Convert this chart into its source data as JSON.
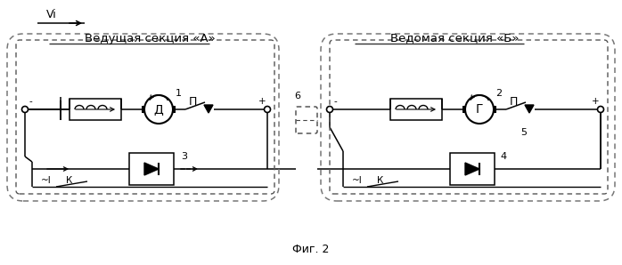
{
  "title": "Фиг. 2",
  "vi_label": "Vi",
  "section_a_label": "Ведущая секция «А»",
  "section_b_label": "Ведомая секция «Б»",
  "motor_a_label": "Д",
  "motor_b_label": "Г",
  "num1": "1",
  "num2": "2",
  "num3": "3",
  "num4": "4",
  "num5": "5",
  "num6": "6",
  "P_label": "П",
  "plus_label": "+",
  "minus_label": "-",
  "I_label": "~I",
  "K_label": "К",
  "bg_color": "#ffffff",
  "line_color": "#000000"
}
